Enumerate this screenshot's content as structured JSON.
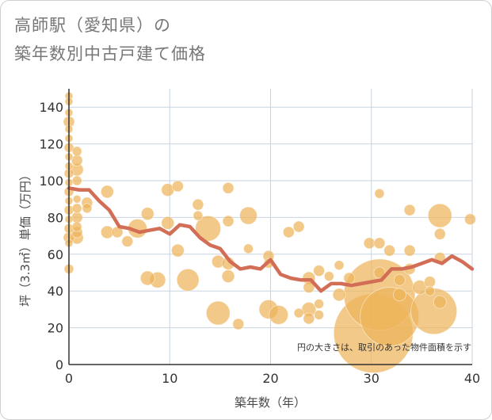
{
  "title": {
    "line1": "高師駅（愛知県）の",
    "line2": "築年数別中古戸建て価格"
  },
  "chart_data": {
    "type": "scatter",
    "xlabel": "築年数（年）",
    "ylabel": "坪（3.3㎡）単価（万円）",
    "xlim": [
      0,
      40
    ],
    "ylim": [
      0,
      150
    ],
    "xticks": [
      0,
      10,
      20,
      30,
      40
    ],
    "yticks": [
      0,
      20,
      40,
      60,
      80,
      100,
      120,
      140
    ],
    "grid": true,
    "note": "円の大きさは、取引のあった物件面積を示す",
    "colors": {
      "bubble": "#EDB45A",
      "line": "#D26E55",
      "grid": "#C9D3DF",
      "axis": "#333333"
    },
    "series": [
      {
        "name": "取引物件",
        "type": "scatter",
        "points": [
          {
            "x": 0,
            "y": 146,
            "size": 5
          },
          {
            "x": 0,
            "y": 143,
            "size": 5
          },
          {
            "x": 0,
            "y": 137,
            "size": 5
          },
          {
            "x": 0,
            "y": 132,
            "size": 7
          },
          {
            "x": 0,
            "y": 128,
            "size": 5
          },
          {
            "x": 0,
            "y": 123,
            "size": 5
          },
          {
            "x": 0,
            "y": 118,
            "size": 6
          },
          {
            "x": 0,
            "y": 113,
            "size": 5
          },
          {
            "x": 0,
            "y": 108,
            "size": 5
          },
          {
            "x": 0,
            "y": 104,
            "size": 6
          },
          {
            "x": 0,
            "y": 99,
            "size": 5
          },
          {
            "x": 0,
            "y": 94,
            "size": 6
          },
          {
            "x": 0,
            "y": 89,
            "size": 5
          },
          {
            "x": 0,
            "y": 84,
            "size": 6
          },
          {
            "x": 0,
            "y": 79,
            "size": 5
          },
          {
            "x": 0,
            "y": 74,
            "size": 6
          },
          {
            "x": 0,
            "y": 69,
            "size": 7
          },
          {
            "x": 0,
            "y": 66,
            "size": 5
          },
          {
            "x": 0,
            "y": 52,
            "size": 6
          },
          {
            "x": 0.8,
            "y": 116,
            "size": 6
          },
          {
            "x": 0.8,
            "y": 111,
            "size": 7
          },
          {
            "x": 0.8,
            "y": 106,
            "size": 8
          },
          {
            "x": 0.8,
            "y": 100,
            "size": 6
          },
          {
            "x": 0.8,
            "y": 90,
            "size": 5
          },
          {
            "x": 0.8,
            "y": 85,
            "size": 6
          },
          {
            "x": 0.8,
            "y": 80,
            "size": 7
          },
          {
            "x": 0.8,
            "y": 75,
            "size": 6
          },
          {
            "x": 0.8,
            "y": 72,
            "size": 7
          },
          {
            "x": 0.8,
            "y": 69,
            "size": 8
          },
          {
            "x": 1.8,
            "y": 88,
            "size": 7
          },
          {
            "x": 1.8,
            "y": 85,
            "size": 6
          },
          {
            "x": 3.8,
            "y": 94,
            "size": 8
          },
          {
            "x": 3.8,
            "y": 72,
            "size": 8
          },
          {
            "x": 4.8,
            "y": 72,
            "size": 7
          },
          {
            "x": 5.8,
            "y": 67,
            "size": 7
          },
          {
            "x": 6.8,
            "y": 74,
            "size": 12
          },
          {
            "x": 7.8,
            "y": 82,
            "size": 8
          },
          {
            "x": 7.8,
            "y": 47,
            "size": 9
          },
          {
            "x": 8.8,
            "y": 46,
            "size": 10
          },
          {
            "x": 9.8,
            "y": 95,
            "size": 8
          },
          {
            "x": 9.8,
            "y": 77,
            "size": 8
          },
          {
            "x": 10.8,
            "y": 97,
            "size": 7
          },
          {
            "x": 10.8,
            "y": 62,
            "size": 8
          },
          {
            "x": 11.8,
            "y": 46,
            "size": 14
          },
          {
            "x": 12.8,
            "y": 87,
            "size": 7
          },
          {
            "x": 12.8,
            "y": 81,
            "size": 6
          },
          {
            "x": 13.8,
            "y": 74,
            "size": 16
          },
          {
            "x": 14.8,
            "y": 56,
            "size": 8
          },
          {
            "x": 14.8,
            "y": 28,
            "size": 15
          },
          {
            "x": 15.8,
            "y": 96,
            "size": 7
          },
          {
            "x": 15.8,
            "y": 78,
            "size": 7
          },
          {
            "x": 15.8,
            "y": 55,
            "size": 8
          },
          {
            "x": 15.8,
            "y": 48,
            "size": 8
          },
          {
            "x": 16.8,
            "y": 22,
            "size": 7
          },
          {
            "x": 17.8,
            "y": 81,
            "size": 11
          },
          {
            "x": 17.8,
            "y": 63,
            "size": 6
          },
          {
            "x": 19.8,
            "y": 59,
            "size": 7
          },
          {
            "x": 19.8,
            "y": 55,
            "size": 6
          },
          {
            "x": 19.8,
            "y": 30,
            "size": 12
          },
          {
            "x": 20.8,
            "y": 27,
            "size": 12
          },
          {
            "x": 21.8,
            "y": 72,
            "size": 7
          },
          {
            "x": 22.8,
            "y": 75,
            "size": 7
          },
          {
            "x": 22.8,
            "y": 28,
            "size": 6
          },
          {
            "x": 23.8,
            "y": 47,
            "size": 8
          },
          {
            "x": 23.8,
            "y": 42,
            "size": 7
          },
          {
            "x": 23.8,
            "y": 30,
            "size": 9
          },
          {
            "x": 23.8,
            "y": 25,
            "size": 7
          },
          {
            "x": 24.8,
            "y": 51,
            "size": 7
          },
          {
            "x": 24.8,
            "y": 33,
            "size": 6
          },
          {
            "x": 24.8,
            "y": 27,
            "size": 6
          },
          {
            "x": 25.8,
            "y": 48,
            "size": 6
          },
          {
            "x": 26.8,
            "y": 54,
            "size": 6
          },
          {
            "x": 26.8,
            "y": 38,
            "size": 8
          },
          {
            "x": 27.8,
            "y": 47,
            "size": 7
          },
          {
            "x": 29.8,
            "y": 66,
            "size": 7
          },
          {
            "x": 30.8,
            "y": 93,
            "size": 6
          },
          {
            "x": 30.8,
            "y": 66,
            "size": 7
          },
          {
            "x": 30.8,
            "y": 50,
            "size": 7
          },
          {
            "x": 30.8,
            "y": 38,
            "size": 45
          },
          {
            "x": 30.2,
            "y": 17,
            "size": 50
          },
          {
            "x": 31.8,
            "y": 62,
            "size": 7
          },
          {
            "x": 31.8,
            "y": 26,
            "size": 37
          },
          {
            "x": 32.8,
            "y": 46,
            "size": 7
          },
          {
            "x": 32.8,
            "y": 38,
            "size": 8
          },
          {
            "x": 33.8,
            "y": 84,
            "size": 7
          },
          {
            "x": 33.8,
            "y": 62,
            "size": 7
          },
          {
            "x": 33.8,
            "y": 52,
            "size": 7
          },
          {
            "x": 34.8,
            "y": 42,
            "size": 9
          },
          {
            "x": 35.8,
            "y": 45,
            "size": 7
          },
          {
            "x": 35.8,
            "y": 40,
            "size": 6
          },
          {
            "x": 36.8,
            "y": 81,
            "size": 15
          },
          {
            "x": 36.8,
            "y": 71,
            "size": 7
          },
          {
            "x": 36.8,
            "y": 58,
            "size": 7
          },
          {
            "x": 36.8,
            "y": 34,
            "size": 8
          },
          {
            "x": 36.2,
            "y": 29,
            "size": 29
          },
          {
            "x": 39.8,
            "y": 79,
            "size": 7
          }
        ]
      },
      {
        "name": "平均",
        "type": "line",
        "x": [
          0,
          1,
          2,
          3,
          4,
          5,
          6,
          7,
          8,
          9,
          10,
          11,
          12,
          13,
          14,
          15,
          16,
          17,
          18,
          19,
          20,
          21,
          22,
          23,
          24,
          25,
          26,
          27,
          28,
          29,
          30,
          31,
          32,
          33,
          34,
          35,
          36,
          37,
          38,
          39,
          40
        ],
        "y": [
          96,
          95,
          95,
          89,
          84,
          75,
          74,
          72,
          73,
          74,
          71,
          76,
          75,
          69,
          65,
          63,
          56,
          52,
          53,
          52,
          57,
          49,
          47,
          46,
          46,
          40,
          44,
          44,
          43,
          44,
          45,
          46,
          52,
          52,
          53,
          55,
          57,
          55,
          59,
          56,
          52
        ]
      }
    ]
  }
}
